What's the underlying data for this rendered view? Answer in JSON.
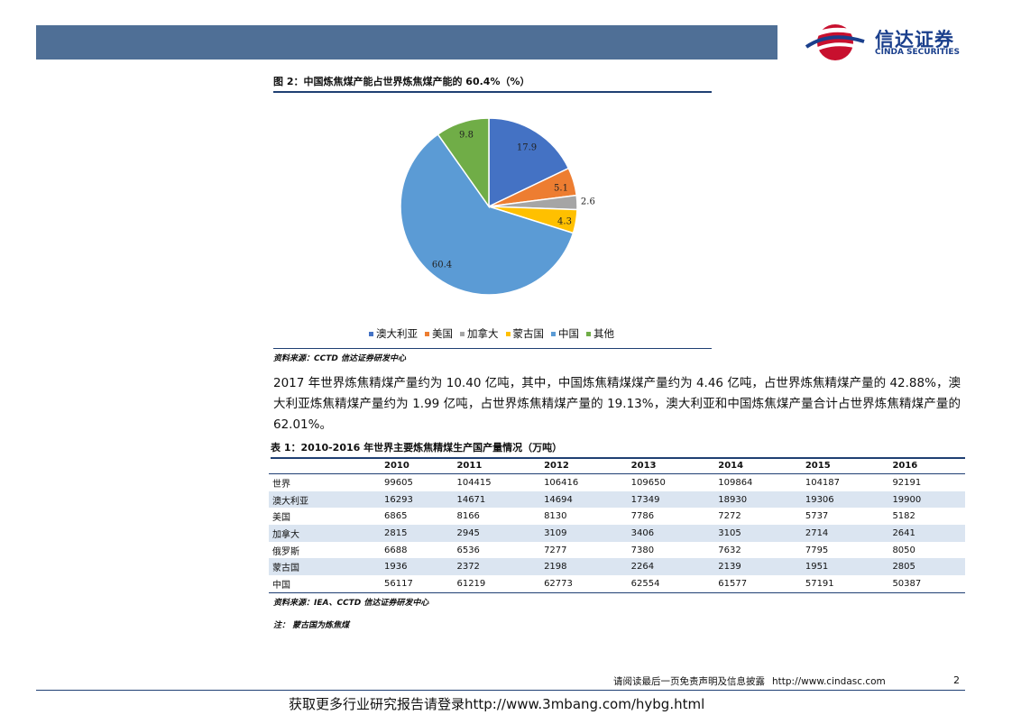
{
  "logo": {
    "name_cn": "信达证券",
    "name_en": "CINDA SECURITIES"
  },
  "figure": {
    "title": "图 2：中国炼焦煤产能占世界炼焦煤产能的 60.4%（%）",
    "source": "资料来源：CCTD  信达证券研发中心"
  },
  "chart_data": {
    "type": "pie",
    "title": "图 2：中国炼焦煤产能占世界炼焦煤产能的 60.4%（%）",
    "categories": [
      "澳大利亚",
      "美国",
      "加拿大",
      "蒙古国",
      "中国",
      "其他"
    ],
    "values": [
      17.9,
      5.1,
      2.6,
      4.3,
      60.4,
      9.8
    ],
    "value_labels": [
      "17.9",
      "5.1",
      "2.6",
      "4.3",
      "60.4",
      "9.8"
    ],
    "colors": [
      "#4472c4",
      "#ed7d31",
      "#a5a5a5",
      "#ffc000",
      "#5b9bd5",
      "#70ad47"
    ],
    "legend_position": "bottom",
    "start_angle": "12 o'clock, clockwise"
  },
  "body_text": "2017 年世界炼焦精煤产量约为 10.40 亿吨，其中，中国炼焦精煤煤产量约为 4.46 亿吨，占世界炼焦精煤产量的 42.88%，澳大利亚炼焦精煤产量约为 1.99 亿吨，占世界炼焦精煤产量的 19.13%，澳大利亚和中国炼焦煤产量合计占世界炼焦精煤产量的 62.01%。",
  "table": {
    "title": "表 1：2010-2016 年世界主要炼焦精煤生产国产量情况（万吨）",
    "headers": [
      "",
      "2010",
      "2011",
      "2012",
      "2013",
      "2014",
      "2015",
      "2016"
    ],
    "rows": [
      [
        "世界",
        "99605",
        "104415",
        "106416",
        "109650",
        "109864",
        "104187",
        "92191"
      ],
      [
        "澳大利亚",
        "16293",
        "14671",
        "14694",
        "17349",
        "18930",
        "19306",
        "19900"
      ],
      [
        "美国",
        "6865",
        "8166",
        "8130",
        "7786",
        "7272",
        "5737",
        "5182"
      ],
      [
        "加拿大",
        "2815",
        "2945",
        "3109",
        "3406",
        "3105",
        "2714",
        "2641"
      ],
      [
        "俄罗斯",
        "6688",
        "6536",
        "7277",
        "7380",
        "7632",
        "7795",
        "8050"
      ],
      [
        "蒙古国",
        "1936",
        "2372",
        "2198",
        "2264",
        "2139",
        "1951",
        "2805"
      ],
      [
        "中国",
        "56117",
        "61219",
        "62773",
        "62554",
        "61577",
        "57191",
        "50387"
      ]
    ],
    "source": "资料来源：IEA、CCTD  信达证券研发中心",
    "note": "注：  蒙古国为炼焦煤"
  },
  "footer": {
    "disclaimer": "请阅读最后一页免责声明及信息披露",
    "url": "http://www.cindasc.com",
    "page_number": "2",
    "promo": "获取更多行业研究报告请登录http://www.3mbang.com/hybg.html"
  }
}
